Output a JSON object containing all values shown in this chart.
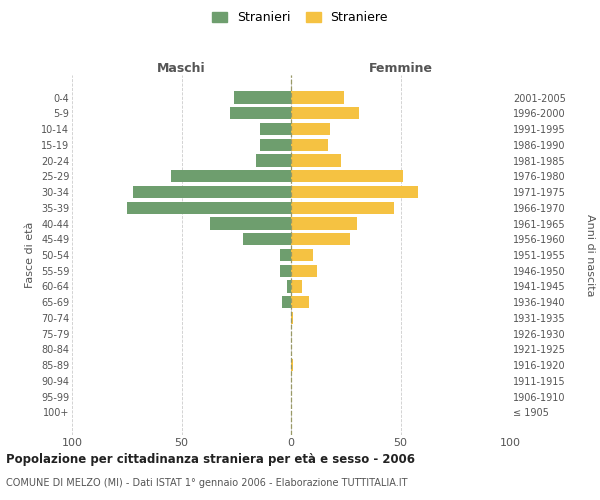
{
  "age_groups": [
    "100+",
    "95-99",
    "90-94",
    "85-89",
    "80-84",
    "75-79",
    "70-74",
    "65-69",
    "60-64",
    "55-59",
    "50-54",
    "45-49",
    "40-44",
    "35-39",
    "30-34",
    "25-29",
    "20-24",
    "15-19",
    "10-14",
    "5-9",
    "0-4"
  ],
  "birth_years": [
    "≤ 1905",
    "1906-1910",
    "1911-1915",
    "1916-1920",
    "1921-1925",
    "1926-1930",
    "1931-1935",
    "1936-1940",
    "1941-1945",
    "1946-1950",
    "1951-1955",
    "1956-1960",
    "1961-1965",
    "1966-1970",
    "1971-1975",
    "1976-1980",
    "1981-1985",
    "1986-1990",
    "1991-1995",
    "1996-2000",
    "2001-2005"
  ],
  "males": [
    0,
    0,
    0,
    0,
    0,
    0,
    0,
    4,
    2,
    5,
    5,
    22,
    37,
    75,
    72,
    55,
    16,
    14,
    14,
    28,
    26
  ],
  "females": [
    0,
    0,
    0,
    1,
    0,
    0,
    1,
    8,
    5,
    12,
    10,
    27,
    30,
    47,
    58,
    51,
    23,
    17,
    18,
    31,
    24
  ],
  "male_color": "#6e9e6e",
  "female_color": "#f5c242",
  "title": "Popolazione per cittadinanza straniera per età e sesso - 2006",
  "subtitle": "COMUNE DI MELZO (MI) - Dati ISTAT 1° gennaio 2006 - Elaborazione TUTTITALIA.IT",
  "xlabel_left": "Maschi",
  "xlabel_right": "Femmine",
  "ylabel_left": "Fasce di età",
  "ylabel_right": "Anni di nascita",
  "legend_stranieri": "Stranieri",
  "legend_straniere": "Straniere",
  "xlim": 100,
  "background_color": "#ffffff",
  "grid_color": "#cccccc"
}
